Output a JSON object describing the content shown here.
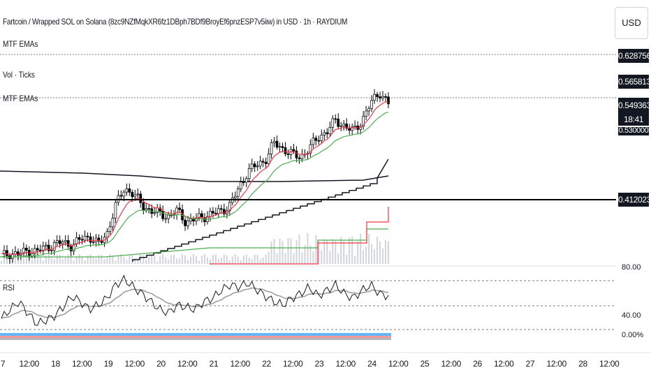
{
  "header": {
    "title": "Fartcoin / Wrapped SOL on Solana (8zc9NZfMqkXR6fz1DBph7BDf9BroyEf6pnzESP7v5iiw) in USD · 1h · RAYDIUM",
    "currency": "USD"
  },
  "indicators": {
    "mtf_emas_1": "MTF EMAs",
    "vol_ticks": "Vol · Ticks",
    "mtf_emas_2": "MTF EMAs",
    "rsi": "RSI"
  },
  "price_tags": {
    "level_1": "0.628756",
    "level_2": "0.565813",
    "current_price": "0.549363",
    "countdown": "18:41",
    "partial_below": "0.530000",
    "horizontal_line": "0.412023"
  },
  "rsi_axis": {
    "upper": "80.00",
    "lower": "40.00",
    "zero": "0.00%"
  },
  "colors": {
    "candle": "#000000",
    "ema_red": "#f23645",
    "ema_green": "#4caf50",
    "ema_dark": "#131722",
    "rsi_line": "#131722",
    "rsi_ma": "#9e9e9e",
    "volume": "#d1d4dc",
    "strip_blue": "#64b5f6",
    "strip_red": "#ef9a9a"
  },
  "chart_data": {
    "type": "line",
    "x_labels": [
      "7",
      "12:00",
      "18",
      "12:00",
      "19",
      "12:00",
      "20",
      "12:00",
      "21",
      "12:00",
      "22",
      "12:00",
      "23",
      "12:00",
      "24",
      "12:00",
      "25",
      "12:00",
      "26",
      "12:00",
      "27",
      "12:00",
      "28",
      "12:00"
    ],
    "price_axis_ticks": [
      "0.628756",
      "0.565813",
      "0.549363",
      "0.412023"
    ],
    "rsi_axis_ticks": [
      "80.00",
      "40.00",
      "0.00%"
    ],
    "price_series": [
      0.28,
      0.285,
      0.283,
      0.29,
      0.288,
      0.295,
      0.3,
      0.305,
      0.298,
      0.31,
      0.315,
      0.3,
      0.32,
      0.37,
      0.4,
      0.39,
      0.37,
      0.36,
      0.355,
      0.35,
      0.36,
      0.34,
      0.345,
      0.35,
      0.355,
      0.36,
      0.37,
      0.4,
      0.43,
      0.44,
      0.45,
      0.48,
      0.47,
      0.46,
      0.455,
      0.47,
      0.49,
      0.5,
      0.52,
      0.51,
      0.5,
      0.52,
      0.55,
      0.57,
      0.549363
    ],
    "rsi_series": [
      40,
      48,
      55,
      45,
      35,
      38,
      42,
      50,
      60,
      55,
      48,
      52,
      58,
      70,
      75,
      68,
      62,
      55,
      48,
      45,
      52,
      50,
      48,
      55,
      58,
      65,
      70,
      68,
      72,
      66,
      60,
      55,
      52,
      58,
      62,
      68,
      60,
      65,
      70,
      62,
      58,
      65,
      70,
      62,
      60
    ],
    "horizontal_line": 0.412023,
    "ylim": [
      0.27,
      0.64
    ]
  }
}
